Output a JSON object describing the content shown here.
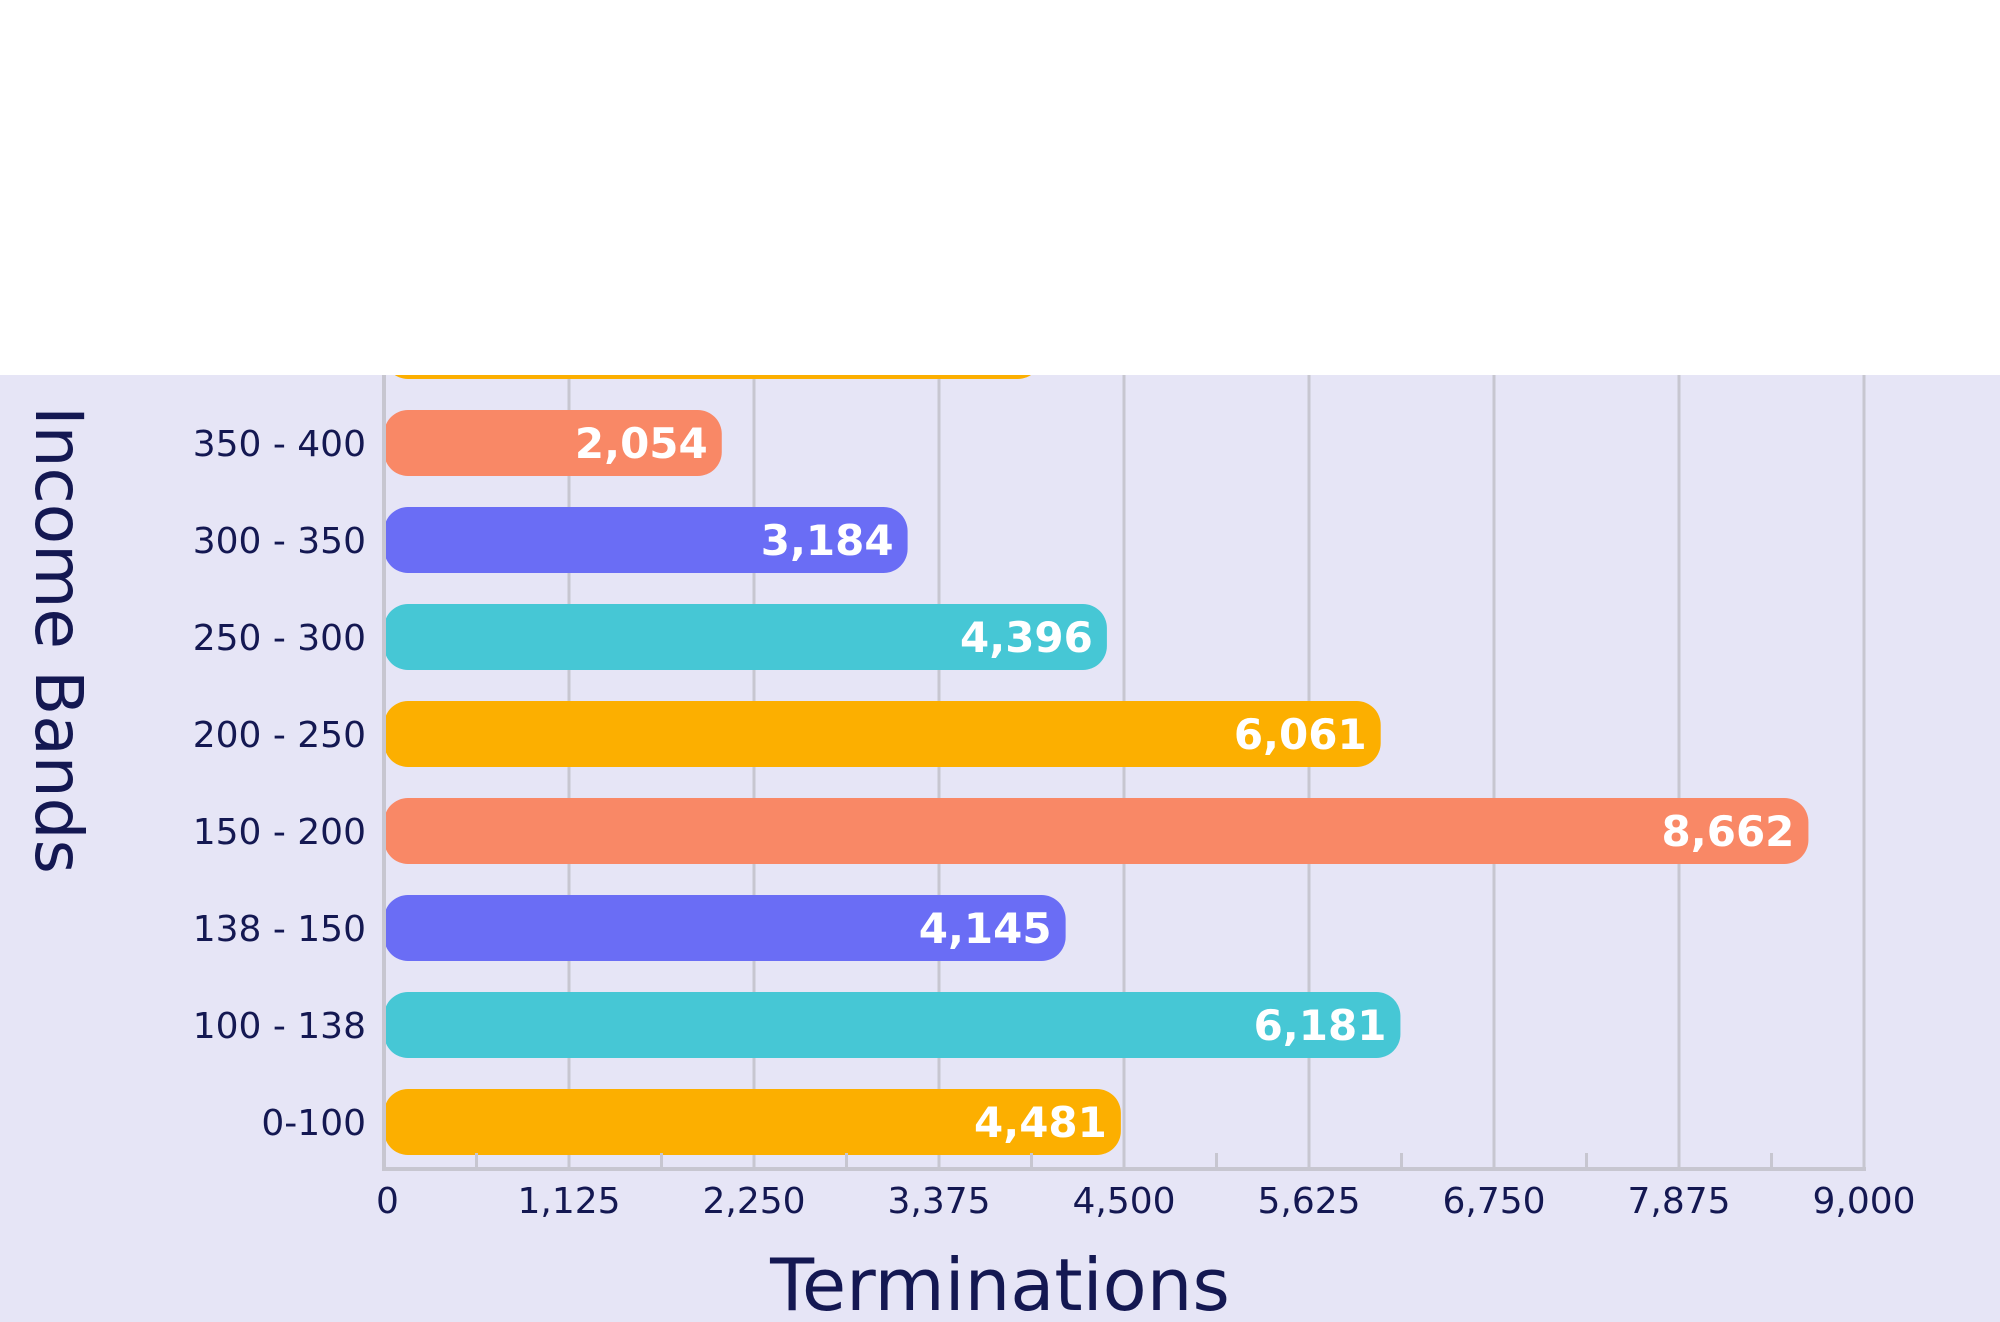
{
  "chart_data": {
    "type": "bar",
    "orientation": "horizontal",
    "title": "",
    "xlabel": "Terminations",
    "ylabel": "Income Bands",
    "xlim": [
      0,
      9000
    ],
    "xticks": [
      "0",
      "1,125",
      "2,250",
      "3,375",
      "4,500",
      "5,625",
      "6,750",
      "7,875",
      "9,000"
    ],
    "grid": true,
    "categories": [
      "350 - 400",
      "300 - 350",
      "250 - 300",
      "200 - 250",
      "150 - 200",
      "138 - 150",
      "100 - 138",
      "0-100"
    ],
    "values": [
      2054,
      3184,
      4396,
      6061,
      8662,
      4145,
      6181,
      4481
    ],
    "value_labels": [
      "2,054",
      "3,184",
      "4,396",
      "6,061",
      "8,662",
      "4,145",
      "6,181",
      "4,481"
    ],
    "colors": [
      "#f98866",
      "#6a6df5",
      "#46c7d5",
      "#fcaf00",
      "#f98866",
      "#6a6df5",
      "#46c7d5",
      "#fcaf00"
    ],
    "partial_top_bar": {
      "color": "#fcaf00",
      "approx_value": 4000
    }
  },
  "colors": {
    "panel_background": "#e6e5f6",
    "page_background": "#ffffff",
    "grid": "#c7c6d0",
    "text": "#141852"
  }
}
